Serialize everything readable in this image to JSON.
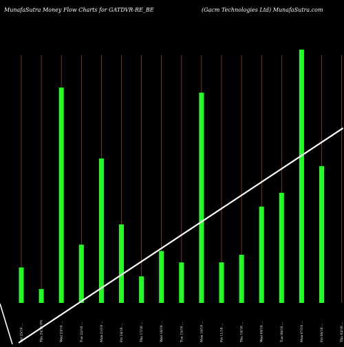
{
  "header": {
    "title_left": "MunafaSutra  Money Flow  Charts for GATDVR-RE_BE",
    "title_right": "(Gacm Technologies Ltd) MunafaSutra.com"
  },
  "colors": {
    "background": "#000000",
    "bar": "#22ff22",
    "gridline": "#8b4a1c",
    "trend_line": "#ffffff",
    "text": "#ffffff"
  },
  "chart_data": {
    "type": "bar",
    "title": "MunafaSutra  Money Flow  Charts for GATDVR-RE_BE",
    "subtitle": "(Gacm Technologies Ltd) MunafaSutra.com",
    "categories": [
      "Fri 25/10 ...",
      "Thu 24/10 0%",
      "Wed 23/10 ...",
      "Tue 22/10 ...",
      "Mon 21/10 ...",
      "Fri 18/10 ...",
      "Thu 17/10 ...",
      "Wed 16/10 ...",
      "Tue 15/10 ...",
      "Mon 14/10 ...",
      "Fri 11/10 ...",
      "Thu 10/10 ...",
      "Wed 09/10 ...",
      "Tue 08/10 ...",
      "Mon 07/10 ...",
      "Fri 04/10 ...",
      "Thu 03/10 ..."
    ],
    "values": [
      14,
      5.5,
      85,
      23,
      57,
      31,
      10.5,
      20.5,
      16,
      83,
      16,
      19,
      38,
      43.5,
      100,
      54,
      0
    ],
    "ylim": [
      0,
      100
    ],
    "grid": true,
    "trend_line": {
      "start": 0,
      "end": 69
    }
  }
}
